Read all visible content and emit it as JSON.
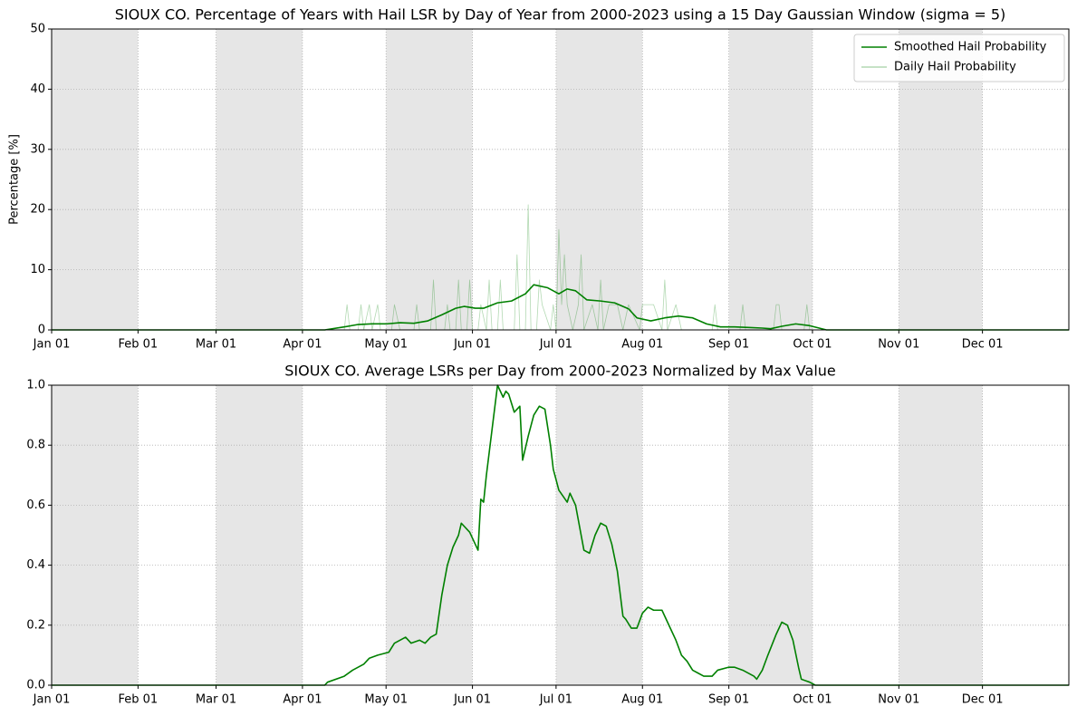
{
  "chart_data": [
    {
      "type": "line",
      "title": "SIOUX CO. Percentage of Years with Hail LSR by Day of Year from 2000-2023 using a 15 Day Gaussian Window (sigma = 5)",
      "ylabel": "Percentage [%]",
      "xlim": [
        0,
        365
      ],
      "ylim": [
        0,
        50
      ],
      "xticks": [
        {
          "value": 0,
          "label": "Jan 01"
        },
        {
          "value": 31,
          "label": "Feb 01"
        },
        {
          "value": 59,
          "label": "Mar 01"
        },
        {
          "value": 90,
          "label": "Apr 01"
        },
        {
          "value": 120,
          "label": "May 01"
        },
        {
          "value": 151,
          "label": "Jun 01"
        },
        {
          "value": 181,
          "label": "Jul 01"
        },
        {
          "value": 212,
          "label": "Aug 01"
        },
        {
          "value": 243,
          "label": "Sep 01"
        },
        {
          "value": 273,
          "label": "Oct 01"
        },
        {
          "value": 304,
          "label": "Nov 01"
        },
        {
          "value": 334,
          "label": "Dec 01"
        }
      ],
      "yticks": [
        0,
        10,
        20,
        30,
        40,
        50
      ],
      "grid": true,
      "shade_alternate_months": true,
      "legend": "upper right",
      "series": [
        {
          "name": "Smoothed Hail Probability",
          "color": "#008000",
          "opacity": 1,
          "linewidth": 1.6,
          "x": [
            0,
            98,
            105,
            110,
            115,
            120,
            125,
            130,
            135,
            140,
            145,
            148,
            152,
            155,
            160,
            165,
            170,
            173,
            178,
            182,
            185,
            188,
            192,
            197,
            202,
            207,
            210,
            215,
            220,
            225,
            230,
            235,
            240,
            245,
            250,
            255,
            258,
            262,
            267,
            272,
            278,
            365
          ],
          "values": [
            0,
            0,
            0.5,
            0.9,
            1.0,
            1.0,
            1.2,
            1.1,
            1.5,
            2.5,
            3.6,
            3.9,
            3.6,
            3.6,
            4.5,
            4.8,
            6.0,
            7.5,
            7.0,
            6.0,
            6.8,
            6.5,
            5.0,
            4.8,
            4.5,
            3.5,
            2.0,
            1.5,
            2.0,
            2.3,
            2.0,
            1.0,
            0.5,
            0.5,
            0.4,
            0.3,
            0.2,
            0.6,
            1.0,
            0.7,
            0,
            0
          ]
        },
        {
          "name": "Daily Hail Probability",
          "color": "#008000",
          "opacity": 0.3,
          "linewidth": 0.8,
          "x": [
            0,
            105,
            106,
            107,
            110,
            111,
            112,
            114,
            115,
            117,
            118,
            122,
            123,
            125,
            130,
            131,
            132,
            136,
            137,
            138,
            141,
            142,
            143,
            145,
            146,
            147,
            149,
            150,
            151,
            153,
            154,
            156,
            157,
            158,
            160,
            161,
            162,
            166,
            167,
            168,
            170,
            171,
            172,
            174,
            175,
            176,
            179,
            180,
            181,
            182,
            183,
            184,
            185,
            187,
            189,
            190,
            191,
            194,
            196,
            197,
            198,
            200,
            203,
            205,
            207,
            211,
            212,
            216,
            219,
            220,
            221,
            224,
            226,
            228,
            237,
            238,
            239,
            247,
            248,
            249,
            259,
            260,
            261,
            262,
            270,
            271,
            272,
            365
          ],
          "values": [
            0,
            0,
            4.2,
            0,
            0,
            4.2,
            0,
            4.2,
            0,
            4.2,
            0,
            0,
            4.2,
            0,
            0,
            4.2,
            0,
            0,
            8.3,
            0,
            0,
            4.2,
            0,
            0,
            8.3,
            0,
            0,
            8.3,
            0,
            0,
            4.2,
            0,
            8.3,
            0,
            0,
            8.3,
            0,
            0,
            12.5,
            0,
            0,
            20.8,
            0,
            0,
            8.3,
            4.2,
            0,
            4.2,
            0,
            16.7,
            4.2,
            12.5,
            4.2,
            0,
            4.2,
            12.5,
            0,
            4.2,
            0,
            8.3,
            0,
            4.2,
            4.2,
            0,
            4.2,
            0,
            4.2,
            4.2,
            0,
            8.3,
            0,
            4.2,
            0,
            0,
            0,
            4.2,
            0,
            0,
            4.2,
            0,
            0,
            4.2,
            4.2,
            0,
            0,
            4.2,
            0,
            0
          ]
        }
      ]
    },
    {
      "type": "line",
      "title": "SIOUX CO. Average LSRs per Day from 2000-2023 Normalized by Max Value",
      "xlim": [
        0,
        365
      ],
      "ylim": [
        0,
        1
      ],
      "xticks": [
        {
          "value": 0,
          "label": "Jan 01"
        },
        {
          "value": 31,
          "label": "Feb 01"
        },
        {
          "value": 59,
          "label": "Mar 01"
        },
        {
          "value": 90,
          "label": "Apr 01"
        },
        {
          "value": 120,
          "label": "May 01"
        },
        {
          "value": 151,
          "label": "Jun 01"
        },
        {
          "value": 181,
          "label": "Jul 01"
        },
        {
          "value": 212,
          "label": "Aug 01"
        },
        {
          "value": 243,
          "label": "Sep 01"
        },
        {
          "value": 273,
          "label": "Oct 01"
        },
        {
          "value": 304,
          "label": "Nov 01"
        },
        {
          "value": 334,
          "label": "Dec 01"
        }
      ],
      "yticks": [
        {
          "value": 0,
          "label": "0.0"
        },
        0.2,
        0.4,
        0.6,
        0.8,
        {
          "value": 1,
          "label": "1.0"
        }
      ],
      "grid": true,
      "shade_alternate_months": true,
      "series": [
        {
          "color": "#008000",
          "opacity": 1,
          "linewidth": 1.6,
          "x": [
            0,
            98,
            99,
            105,
            108,
            112,
            114,
            117,
            121,
            123,
            127,
            129,
            132,
            134,
            136,
            138,
            140,
            142,
            144,
            146,
            147,
            150,
            153,
            154,
            155,
            156,
            158,
            160,
            162,
            163,
            164,
            166,
            168,
            169,
            171,
            173,
            175,
            177,
            179,
            180,
            182,
            185,
            186,
            188,
            190,
            191,
            193,
            195,
            197,
            199,
            201,
            203,
            205,
            206,
            208,
            210,
            212,
            214,
            216,
            219,
            222,
            224,
            226,
            228,
            230,
            232,
            234,
            237,
            239,
            243,
            245,
            248,
            252,
            253,
            255,
            257,
            260,
            262,
            264,
            266,
            268,
            269,
            272,
            274,
            365
          ],
          "values": [
            0,
            0,
            0.01,
            0.03,
            0.05,
            0.07,
            0.09,
            0.1,
            0.11,
            0.14,
            0.16,
            0.14,
            0.15,
            0.14,
            0.16,
            0.17,
            0.3,
            0.4,
            0.46,
            0.5,
            0.54,
            0.51,
            0.45,
            0.62,
            0.61,
            0.7,
            0.85,
            1.0,
            0.96,
            0.98,
            0.97,
            0.91,
            0.93,
            0.75,
            0.83,
            0.9,
            0.93,
            0.92,
            0.8,
            0.72,
            0.65,
            0.61,
            0.64,
            0.6,
            0.5,
            0.45,
            0.44,
            0.5,
            0.54,
            0.53,
            0.47,
            0.38,
            0.23,
            0.22,
            0.19,
            0.19,
            0.24,
            0.26,
            0.25,
            0.25,
            0.19,
            0.15,
            0.1,
            0.08,
            0.05,
            0.04,
            0.03,
            0.03,
            0.05,
            0.06,
            0.06,
            0.05,
            0.03,
            0.02,
            0.05,
            0.1,
            0.17,
            0.21,
            0.2,
            0.15,
            0.06,
            0.02,
            0.01,
            0,
            0
          ]
        }
      ]
    }
  ]
}
